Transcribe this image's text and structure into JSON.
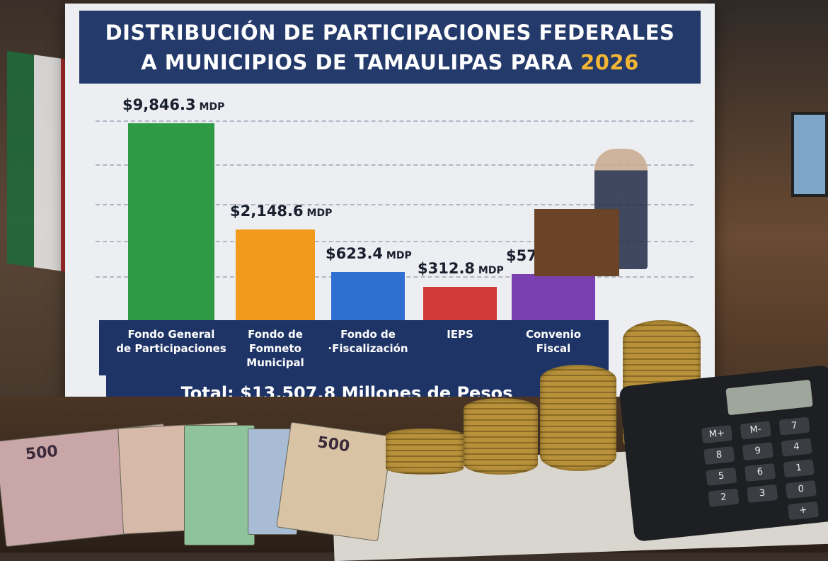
{
  "chart_data": {
    "type": "bar",
    "title": "DISTRIBUCIÓN DE PARTICIPACIONES FEDERALES A MUNICIPIOS DE TAMAULIPAS PARA 2026",
    "title_line1": "DISTRIBUCIÓN DE PARTICIPACIONES FEDERALES",
    "title_line2": "A MUNICIPIOS DE TAMAULIPAS PARA",
    "title_year": "2026",
    "categories": [
      "Fondo General\nde Participaciones",
      "Fondo de\nFomneto\nMunicipal",
      "Fondo de\n·Fiscalización",
      "IEPS",
      "Convenio\nFiscal"
    ],
    "values": [
      9846.3,
      2148.6,
      623.4,
      312.8,
      576.7
    ],
    "value_labels": [
      "$9,846.3",
      "$2,148.6",
      "$623.4",
      "$312.8",
      "$576.7"
    ],
    "unit": "MDP",
    "colors": [
      "#2e9a45",
      "#f29a1c",
      "#2f6fd0",
      "#d23a3a",
      "#7a3fb0"
    ],
    "total": "Total: $13,507.8 Millones de Pesos",
    "grid": true,
    "xlabel": "",
    "ylabel": ""
  },
  "props": {
    "banknote_value": "500",
    "calc_keys": [
      "M+",
      "M-",
      "7",
      "8",
      "9",
      "4",
      "5",
      "6",
      "1",
      "2",
      "3",
      "0",
      "+"
    ]
  }
}
